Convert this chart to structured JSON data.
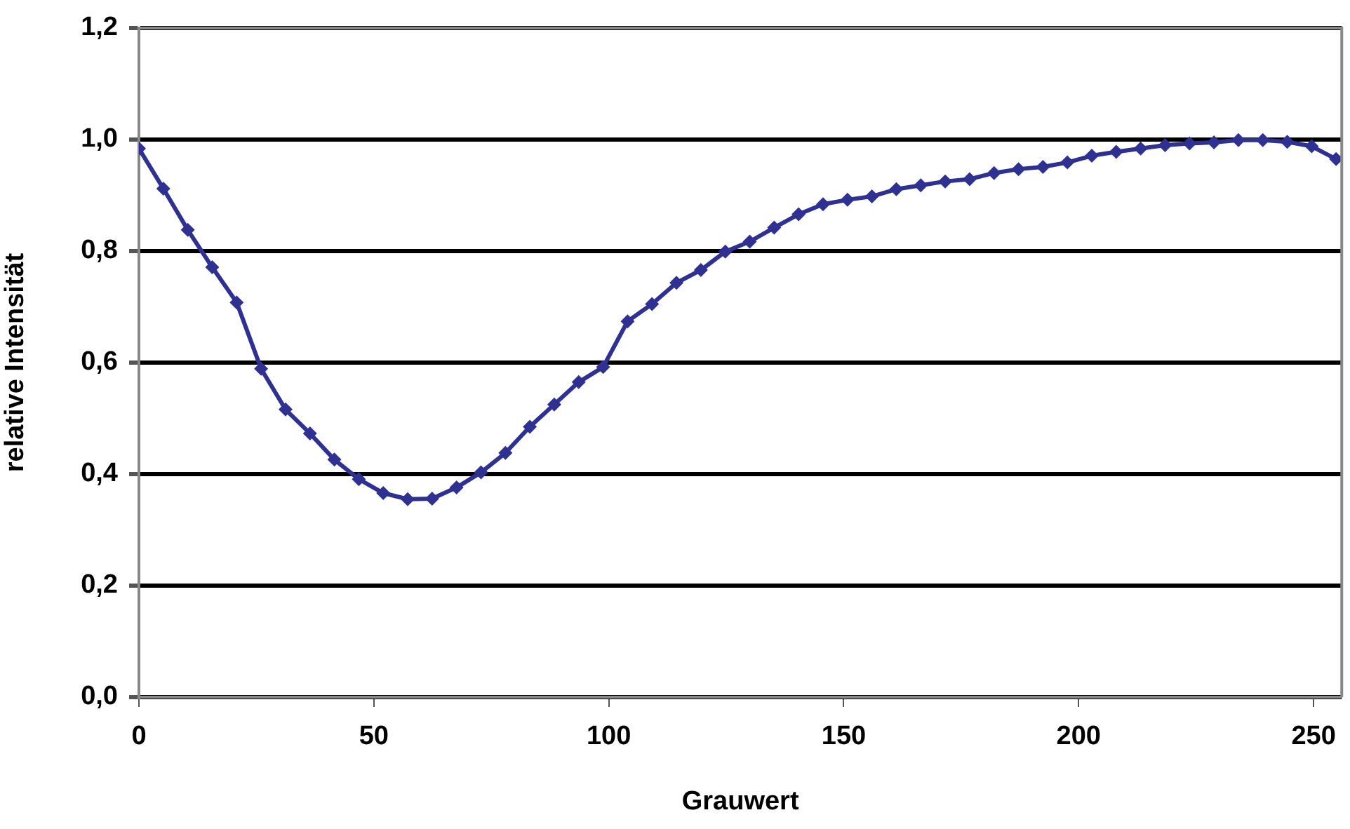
{
  "chart_data": {
    "type": "line",
    "xlabel": "Grauwert",
    "ylabel": "relative Intensität",
    "x": [
      0,
      5.2,
      10.4,
      15.6,
      20.8,
      26,
      31.2,
      36.4,
      41.6,
      46.8,
      52,
      57.2,
      62.4,
      67.6,
      72.8,
      78,
      83.2,
      88.4,
      93.6,
      98.8,
      104,
      109.2,
      114.4,
      119.6,
      124.8,
      130,
      135.2,
      140.4,
      145.6,
      150.8,
      156,
      161.2,
      166.4,
      171.6,
      176.8,
      182,
      187.2,
      192.4,
      197.6,
      202.8,
      208,
      213.2,
      218.4,
      223.6,
      228.8,
      234,
      239.2,
      244.4,
      249.6,
      254.8
    ],
    "series": [
      {
        "color": "#2e3192",
        "values": [
          0.984,
          0.912,
          0.838,
          0.771,
          0.708,
          0.589,
          0.516,
          0.473,
          0.426,
          0.391,
          0.366,
          0.355,
          0.356,
          0.376,
          0.403,
          0.438,
          0.485,
          0.525,
          0.565,
          0.592,
          0.674,
          0.705,
          0.743,
          0.766,
          0.799,
          0.817,
          0.842,
          0.866,
          0.884,
          0.892,
          0.898,
          0.911,
          0.918,
          0.925,
          0.929,
          0.94,
          0.947,
          0.951,
          0.959,
          0.971,
          0.978,
          0.984,
          0.99,
          0.993,
          0.995,
          0.999,
          0.999,
          0.996,
          0.988,
          0.965
        ]
      }
    ],
    "xlim": [
      0,
      256
    ],
    "xticks": [
      0,
      50,
      100,
      150,
      200,
      250
    ],
    "ylim": [
      0,
      1.2
    ],
    "yticks": [
      {
        "value": 0,
        "label": "0,0"
      },
      {
        "value": 0.2,
        "label": "0,2"
      },
      {
        "value": 0.4,
        "label": "0,4"
      },
      {
        "value": 0.6,
        "label": "0,6"
      },
      {
        "value": 0.8,
        "label": "0,8"
      },
      {
        "value": 1,
        "label": "1,0"
      },
      {
        "value": 1.2,
        "label": "1,2"
      }
    ],
    "grid": "y",
    "legend": false,
    "marker": "diamond",
    "line_style": "solid"
  }
}
